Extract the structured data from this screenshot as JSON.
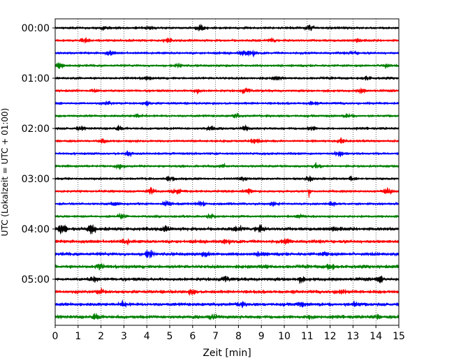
{
  "chart_data": {
    "type": "line",
    "title": "",
    "xlabel": "Zeit  [min]",
    "ylabel": "UTC (Lokalzeit = UTC + 01:00)",
    "xlim": [
      0,
      15
    ],
    "x_ticks": [
      "0",
      "1",
      "2",
      "3",
      "4",
      "5",
      "6",
      "7",
      "8",
      "9",
      "10",
      "11",
      "12",
      "13",
      "14",
      "15"
    ],
    "y_ticks": [
      "00:00",
      "01:00",
      "02:00",
      "03:00",
      "04:00",
      "05:00"
    ],
    "row_interval_minutes": 15,
    "rows": 24,
    "color_cycle": [
      "#000000",
      "#ff0000",
      "#0000ff",
      "#008000"
    ],
    "grid": "vertical-dotted",
    "series": [
      {
        "start": "00:00",
        "events": [
          {
            "t": 2.2,
            "a": 3
          },
          {
            "t": 4.1,
            "a": 3
          },
          {
            "t": 6.3,
            "a": 6
          },
          {
            "t": 11.1,
            "a": 7
          }
        ]
      },
      {
        "start": "00:15",
        "events": [
          {
            "t": 1.3,
            "a": 4
          },
          {
            "t": 4.9,
            "a": 3
          },
          {
            "t": 9.5,
            "a": 3
          },
          {
            "t": 13.3,
            "a": 3
          }
        ]
      },
      {
        "start": "00:30",
        "events": [
          {
            "t": 2.4,
            "a": 4
          },
          {
            "t": 8.2,
            "a": 4
          },
          {
            "t": 8.6,
            "a": 5
          },
          {
            "t": 13.0,
            "a": 3
          }
        ]
      },
      {
        "start": "00:45",
        "events": [
          {
            "t": 0.2,
            "a": 6
          },
          {
            "t": 5.4,
            "a": 3
          },
          {
            "t": 14.4,
            "a": 4
          }
        ]
      },
      {
        "start": "01:00",
        "events": [
          {
            "t": 4.0,
            "a": 3
          },
          {
            "t": 9.7,
            "a": 3
          },
          {
            "t": 13.6,
            "a": 3
          }
        ]
      },
      {
        "start": "01:15",
        "events": [
          {
            "t": 1.7,
            "a": 4
          },
          {
            "t": 6.2,
            "a": 4
          },
          {
            "t": 8.3,
            "a": 5
          },
          {
            "t": 13.4,
            "a": 4
          }
        ]
      },
      {
        "start": "01:30",
        "events": [
          {
            "t": 2.3,
            "a": 3
          },
          {
            "t": 4.0,
            "a": 4
          },
          {
            "t": 11.2,
            "a": 3
          }
        ]
      },
      {
        "start": "01:45",
        "events": [
          {
            "t": 3.6,
            "a": 3
          },
          {
            "t": 7.9,
            "a": 3
          },
          {
            "t": 12.8,
            "a": 3
          }
        ]
      },
      {
        "start": "02:00",
        "events": [
          {
            "t": 1.1,
            "a": 3
          },
          {
            "t": 2.8,
            "a": 3
          },
          {
            "t": 6.8,
            "a": 4
          },
          {
            "t": 8.3,
            "a": 4
          },
          {
            "t": 11.2,
            "a": 3
          }
        ]
      },
      {
        "start": "02:15",
        "events": [
          {
            "t": 2.1,
            "a": 3
          },
          {
            "t": 8.7,
            "a": 4
          },
          {
            "t": 12.5,
            "a": 4
          }
        ]
      },
      {
        "start": "02:30",
        "events": [
          {
            "t": 3.2,
            "a": 3
          },
          {
            "t": 12.4,
            "a": 4
          }
        ]
      },
      {
        "start": "02:45",
        "events": [
          {
            "t": 2.8,
            "a": 3
          },
          {
            "t": 7.3,
            "a": 3
          },
          {
            "t": 11.4,
            "a": 5
          }
        ]
      },
      {
        "start": "03:00",
        "events": [
          {
            "t": 5.0,
            "a": 5
          },
          {
            "t": 8.2,
            "a": 3
          },
          {
            "t": 11.1,
            "a": 4
          },
          {
            "t": 13.0,
            "a": 3
          }
        ]
      },
      {
        "start": "03:15",
        "events": [
          {
            "t": 4.2,
            "a": 7
          },
          {
            "t": 5.3,
            "a": 5
          },
          {
            "t": 8.4,
            "a": 5
          },
          {
            "t": 11.1,
            "a": 18
          },
          {
            "t": 14.5,
            "a": 6
          }
        ]
      },
      {
        "start": "03:30",
        "events": [
          {
            "t": 2.6,
            "a": 3
          },
          {
            "t": 4.9,
            "a": 4
          },
          {
            "t": 6.4,
            "a": 4
          },
          {
            "t": 9.5,
            "a": 4
          },
          {
            "t": 12.1,
            "a": 4
          }
        ]
      },
      {
        "start": "03:45",
        "events": [
          {
            "t": 2.9,
            "a": 4
          },
          {
            "t": 6.8,
            "a": 3
          },
          {
            "t": 10.7,
            "a": 3
          }
        ]
      },
      {
        "start": "04:00",
        "events": [
          {
            "t": 0.3,
            "a": 10
          },
          {
            "t": 1.6,
            "a": 10
          },
          {
            "t": 4.8,
            "a": 4
          },
          {
            "t": 8.0,
            "a": 5
          },
          {
            "t": 8.9,
            "a": 7
          },
          {
            "t": 12.3,
            "a": 4
          }
        ]
      },
      {
        "start": "04:15",
        "events": [
          {
            "t": 3.1,
            "a": 4
          },
          {
            "t": 7.5,
            "a": 3
          },
          {
            "t": 10.1,
            "a": 4
          }
        ]
      },
      {
        "start": "04:30",
        "events": [
          {
            "t": 4.1,
            "a": 7
          },
          {
            "t": 6.6,
            "a": 3
          },
          {
            "t": 9.0,
            "a": 4
          },
          {
            "t": 11.8,
            "a": 3
          }
        ]
      },
      {
        "start": "04:45",
        "events": [
          {
            "t": 1.9,
            "a": 4
          },
          {
            "t": 9.2,
            "a": 3
          },
          {
            "t": 12.0,
            "a": 5
          }
        ]
      },
      {
        "start": "05:00",
        "events": [
          {
            "t": 1.7,
            "a": 4
          },
          {
            "t": 7.4,
            "a": 4
          },
          {
            "t": 10.7,
            "a": 4
          },
          {
            "t": 14.2,
            "a": 4
          }
        ]
      },
      {
        "start": "05:15",
        "events": [
          {
            "t": 2.0,
            "a": 4
          },
          {
            "t": 6.0,
            "a": 4
          },
          {
            "t": 12.4,
            "a": 4
          }
        ]
      },
      {
        "start": "05:30",
        "events": [
          {
            "t": 3.0,
            "a": 4
          },
          {
            "t": 8.1,
            "a": 3
          },
          {
            "t": 10.7,
            "a": 4
          },
          {
            "t": 13.1,
            "a": 4
          }
        ]
      },
      {
        "start": "05:45",
        "events": [
          {
            "t": 1.8,
            "a": 4
          },
          {
            "t": 6.9,
            "a": 4
          },
          {
            "t": 11.2,
            "a": 4
          },
          {
            "t": 14.0,
            "a": 3
          }
        ]
      }
    ]
  }
}
